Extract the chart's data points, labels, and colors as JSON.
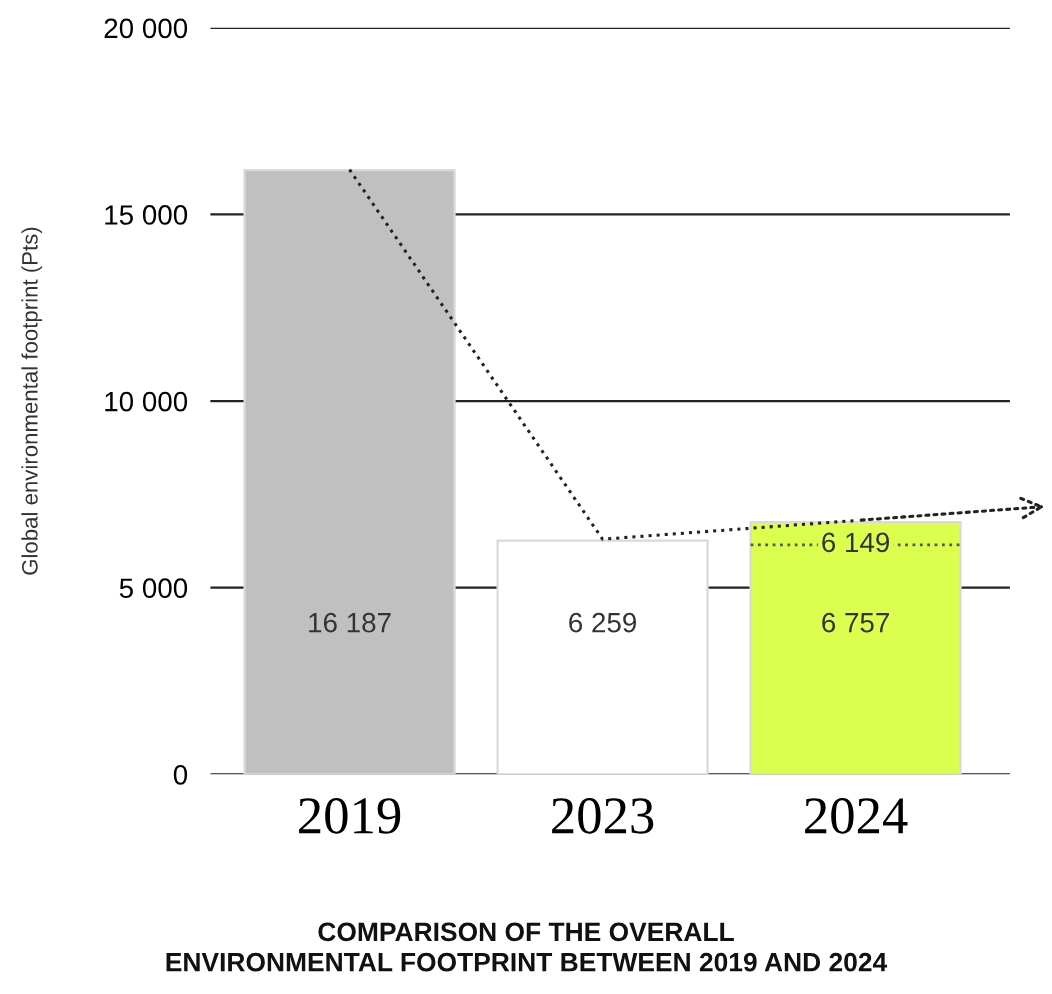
{
  "chart_data": {
    "type": "bar",
    "title": "COMPARISON OF THE OVERALL\nENVIRONMENTAL FOOTPRINT BETWEEN 2019 AND 2024",
    "ylabel": "Global environmental footprint (Pts)",
    "categories": [
      "2019",
      "2023",
      "2024"
    ],
    "values": [
      16187,
      6259,
      6757
    ],
    "colors": [
      "#c0c0c0",
      "#ffffff",
      "#dcff4f"
    ],
    "value_labels": [
      "16 187",
      "6 259",
      "6 757"
    ],
    "ylim": [
      0,
      20000
    ],
    "yticks": [
      0,
      {
        "value": 5000,
        "label": "5 000"
      },
      {
        "value": 10000,
        "label": "10 000"
      },
      {
        "value": 15000,
        "label": "15 000"
      },
      {
        "value": 20000,
        "label": "20 000"
      }
    ],
    "ref_lines": [
      {
        "axis": "y",
        "value": 6149,
        "label": "6 149",
        "line_style": "dotted",
        "color": "#555555"
      }
    ],
    "series": [
      {
        "type": "line",
        "color": "#222222",
        "line_style": "dotted",
        "marker": "none",
        "values": [
          16200,
          6300,
          6800
        ]
      }
    ],
    "grid": "y",
    "legend": false
  }
}
